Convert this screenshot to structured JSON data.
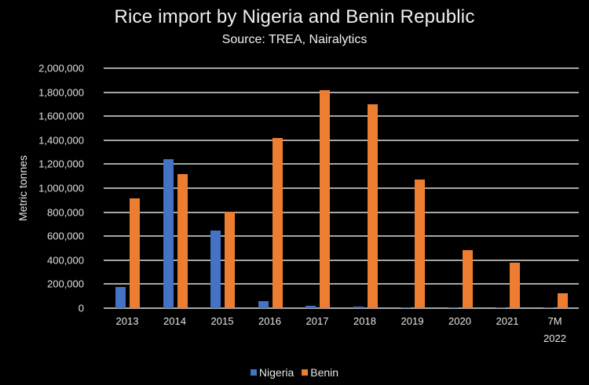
{
  "chart_data": {
    "type": "bar",
    "title": "Rice import by Nigeria and Benin Republic",
    "subtitle": "Source: TREA, Nairalytics",
    "xlabel": "",
    "ylabel": "Metric tonnes",
    "ylim": [
      0,
      2000000
    ],
    "yticks": [
      "2,000,000",
      "1,800,000",
      "1,600,000",
      "1,400,000",
      "1,200,000",
      "1,000,000",
      "800,000",
      "600,000",
      "400,000",
      "200,000",
      "0"
    ],
    "grid": true,
    "legend_position": "bottom",
    "categories": [
      "2013",
      "2014",
      "2015",
      "2016",
      "2017",
      "2018",
      "2019",
      "2020",
      "2021",
      "7M 2022"
    ],
    "series": [
      {
        "name": "Nigeria",
        "color": "#4472c4",
        "values": [
          176000,
          1242000,
          647000,
          58000,
          20000,
          10000,
          6000,
          5000,
          5000,
          5000
        ]
      },
      {
        "name": "Benin",
        "color": "#ed7d31",
        "values": [
          915000,
          1118000,
          804000,
          1418000,
          1817000,
          1700000,
          1072000,
          484000,
          379000,
          124000
        ]
      }
    ]
  },
  "xtick_lines": [
    [
      "2013"
    ],
    [
      "2014"
    ],
    [
      "2015"
    ],
    [
      "2016"
    ],
    [
      "2017"
    ],
    [
      "2018"
    ],
    [
      "2019"
    ],
    [
      "2020"
    ],
    [
      "2021"
    ],
    [
      "7M",
      "2022"
    ]
  ]
}
